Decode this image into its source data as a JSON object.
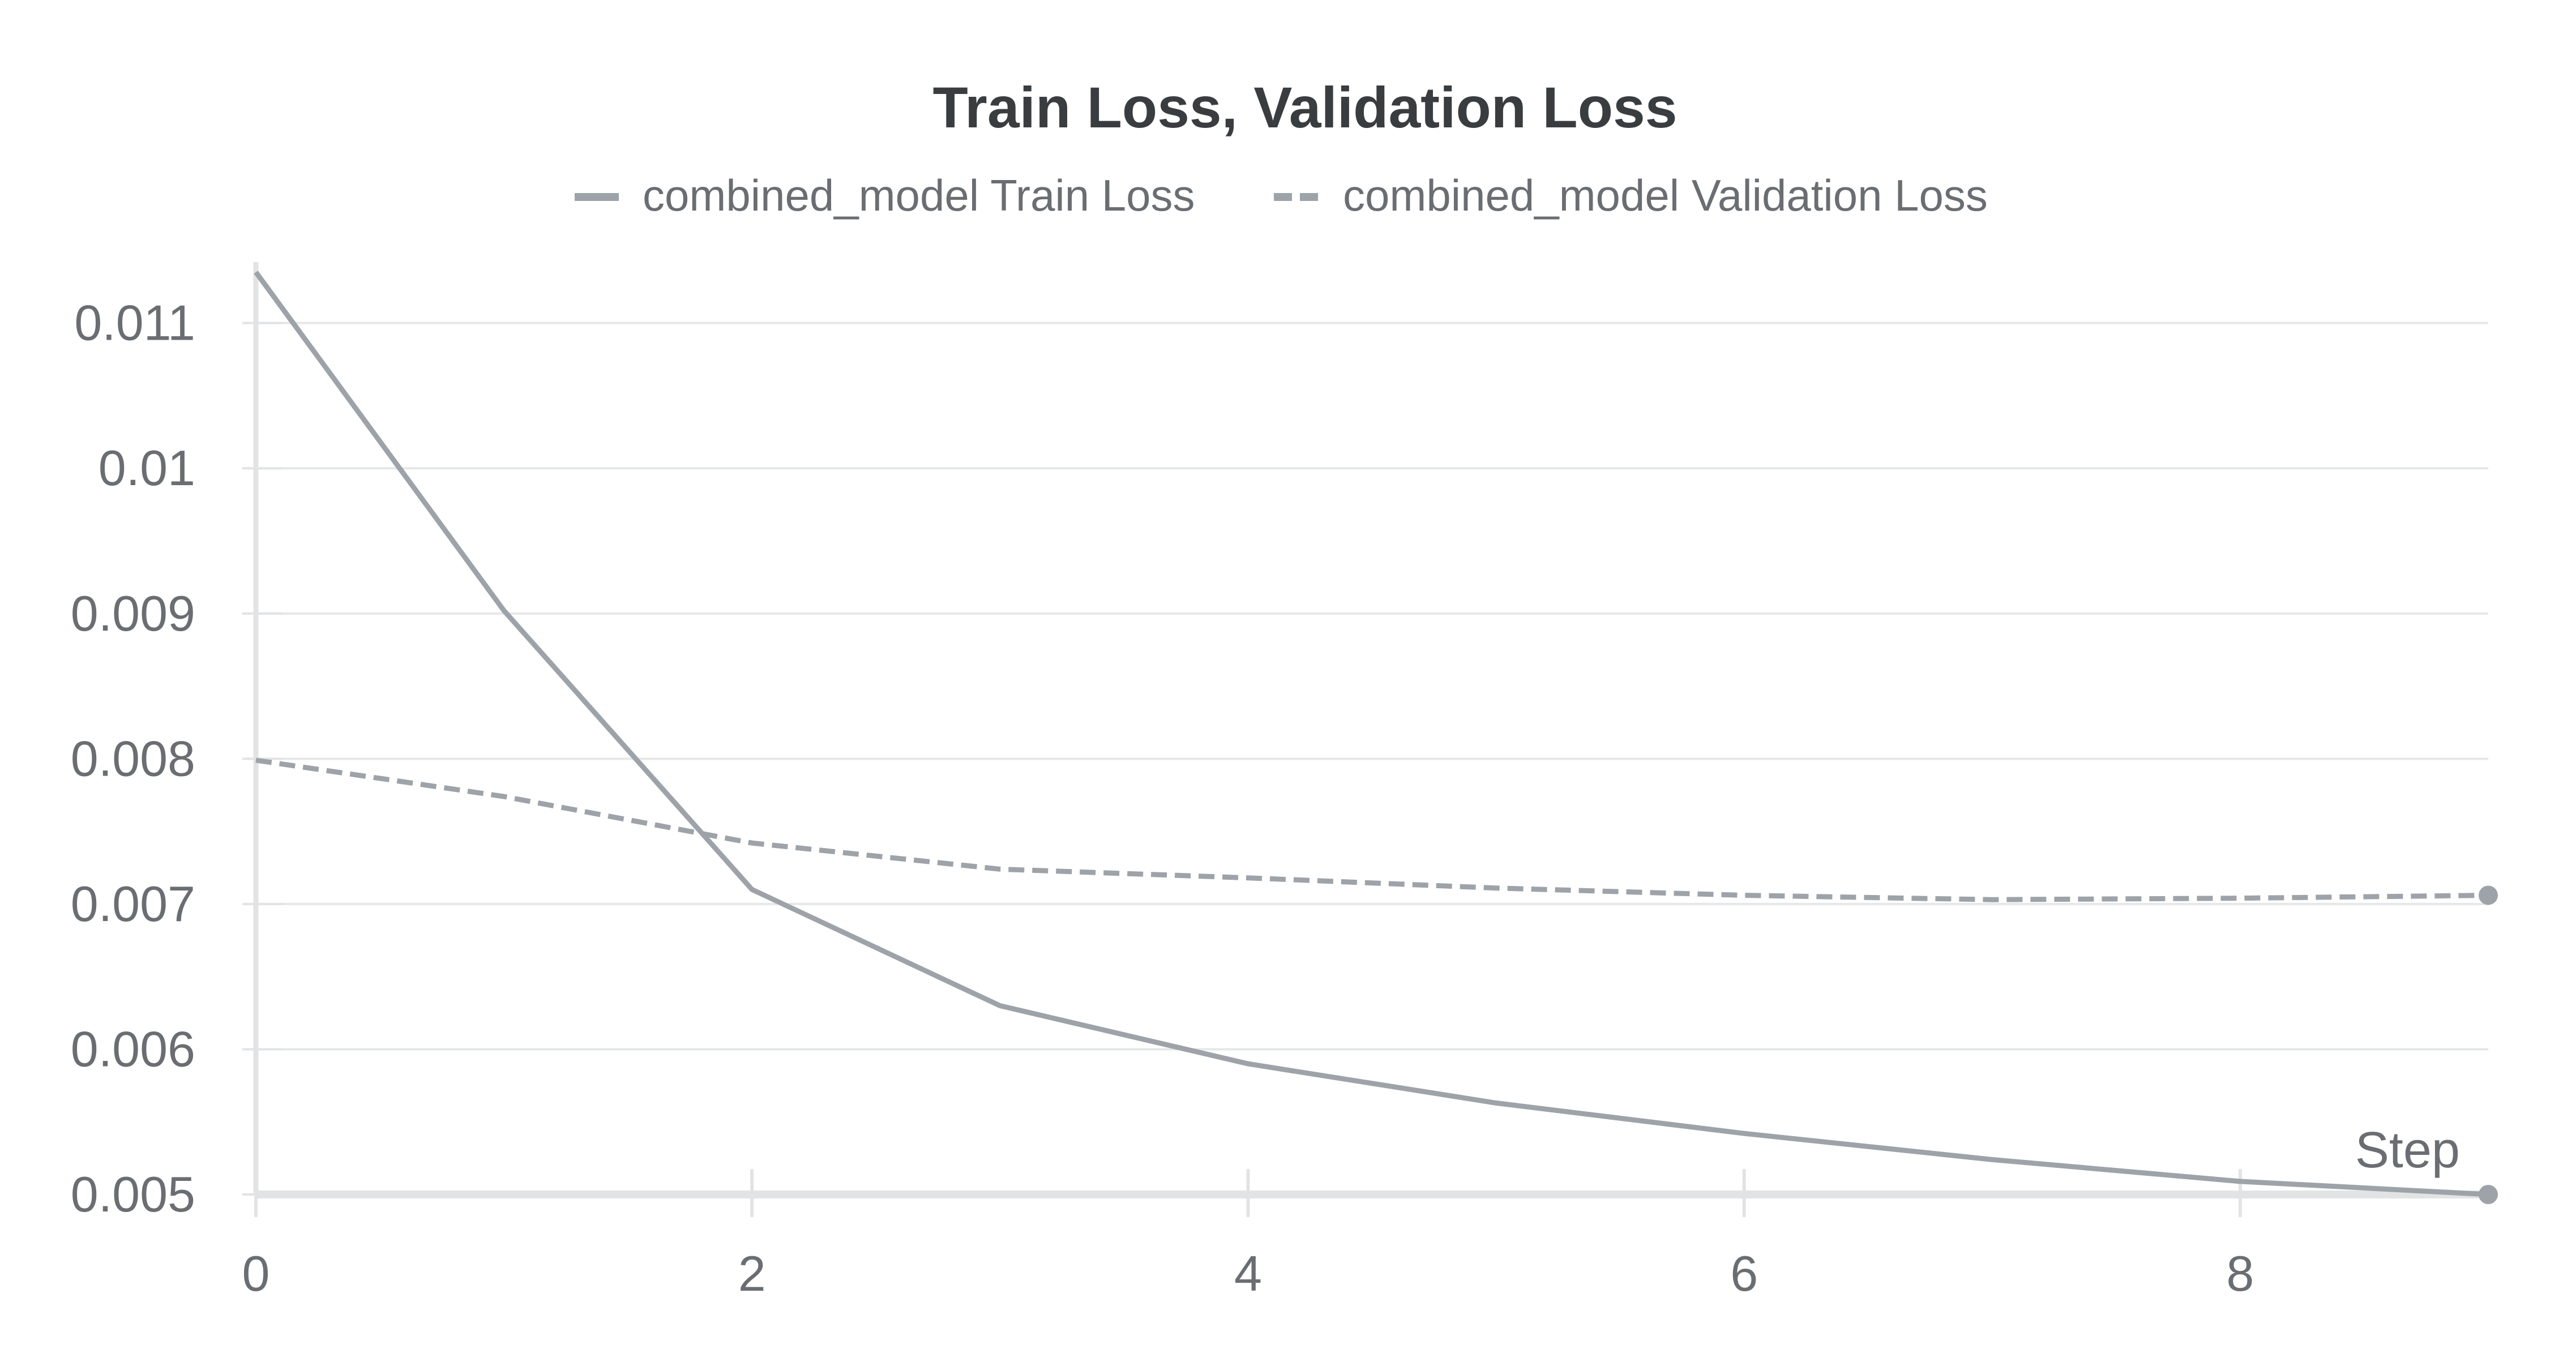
{
  "chart_data": {
    "type": "line",
    "title": "Train Loss, Validation Loss",
    "xlabel": "Step",
    "ylabel": "",
    "x": [
      0,
      1,
      2,
      3,
      4,
      5,
      6,
      7,
      8,
      9
    ],
    "xlim": [
      0,
      9
    ],
    "ylim": [
      0.005,
      0.0114
    ],
    "xticks": [
      0,
      2,
      4,
      6,
      8
    ],
    "xtick_labels": [
      "0",
      "2",
      "4",
      "6",
      "8"
    ],
    "yticks": [
      0.005,
      0.006,
      0.007,
      0.008,
      0.009,
      0.01,
      0.011
    ],
    "ytick_labels": [
      "0.005",
      "0.006",
      "0.007",
      "0.008",
      "0.009",
      "0.01",
      "0.011"
    ],
    "grid": true,
    "legend_position": "top-center",
    "series": [
      {
        "name": "combined_model Train Loss",
        "style": "solid",
        "color": "#9da3a8",
        "values": [
          0.01135,
          0.00902,
          0.0071,
          0.0063,
          0.0059,
          0.00563,
          0.00542,
          0.00524,
          0.00509,
          0.005
        ]
      },
      {
        "name": "combined_model Validation Loss",
        "style": "dashed",
        "color": "#9da3a8",
        "values": [
          0.00799,
          0.00774,
          0.00742,
          0.00724,
          0.00718,
          0.00711,
          0.00706,
          0.00703,
          0.00704,
          0.00706
        ]
      }
    ],
    "colors": {
      "grid": "#e6e7e8",
      "axis": "#e2e3e4",
      "text": "#6a6d71",
      "title": "#3a3d40"
    }
  }
}
